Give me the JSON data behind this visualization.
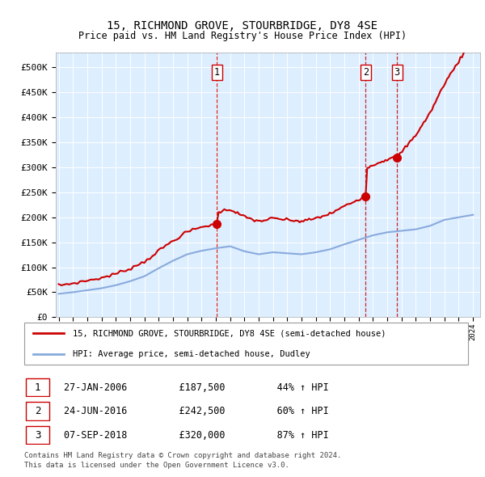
{
  "title": "15, RICHMOND GROVE, STOURBRIDGE, DY8 4SE",
  "subtitle": "Price paid vs. HM Land Registry's House Price Index (HPI)",
  "ylabel_ticks": [
    "£0",
    "£50K",
    "£100K",
    "£150K",
    "£200K",
    "£250K",
    "£300K",
    "£350K",
    "£400K",
    "£450K",
    "£500K"
  ],
  "ytick_values": [
    0,
    50000,
    100000,
    150000,
    200000,
    250000,
    300000,
    350000,
    400000,
    450000,
    500000
  ],
  "ylim": [
    0,
    530000
  ],
  "xlim_start": 1994.8,
  "xlim_end": 2024.5,
  "sale_dates": [
    2006.07,
    2016.48,
    2018.68
  ],
  "sale_prices": [
    187500,
    242500,
    320000
  ],
  "sale_labels": [
    "1",
    "2",
    "3"
  ],
  "legend_property": "15, RICHMOND GROVE, STOURBRIDGE, DY8 4SE (semi-detached house)",
  "legend_hpi": "HPI: Average price, semi-detached house, Dudley",
  "table_rows": [
    {
      "num": "1",
      "date": "27-JAN-2006",
      "price": "£187,500",
      "hpi": "44% ↑ HPI"
    },
    {
      "num": "2",
      "date": "24-JUN-2016",
      "price": "£242,500",
      "hpi": "60% ↑ HPI"
    },
    {
      "num": "3",
      "date": "07-SEP-2018",
      "price": "£320,000",
      "hpi": "87% ↑ HPI"
    }
  ],
  "footnote1": "Contains HM Land Registry data © Crown copyright and database right 2024.",
  "footnote2": "This data is licensed under the Open Government Licence v3.0.",
  "property_color": "#cc0000",
  "hpi_color": "#88aadd",
  "dashed_line_color": "#cc0000",
  "plot_bg": "#ddeeff"
}
